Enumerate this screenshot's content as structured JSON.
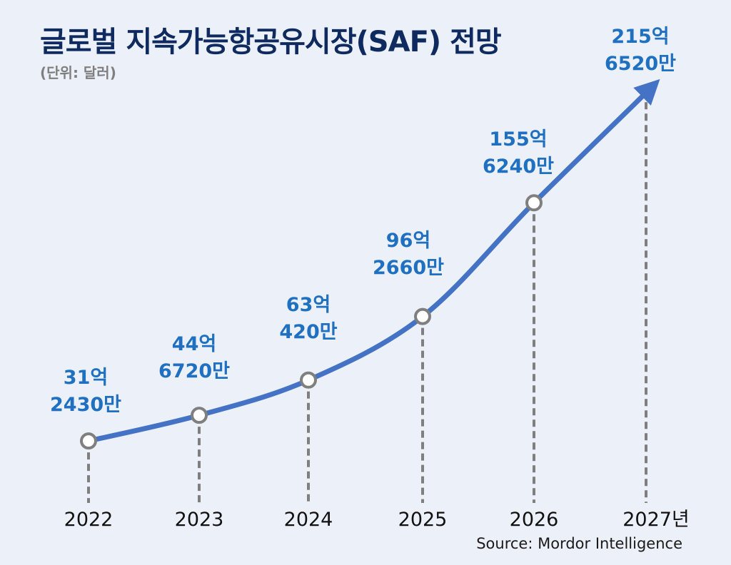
{
  "chart_data": {
    "type": "line",
    "title": "글로벌 지속가능항공유시장(SAF) 전망",
    "subtitle": "(단위: 달러)",
    "source": "Source: Mordor Intelligence",
    "x": [
      "2022",
      "2023",
      "2024",
      "2025",
      "2026",
      "2027년"
    ],
    "values_billion_usd": [
      3.1243,
      4.4672,
      6.3042,
      9.6266,
      15.5624,
      21.5652
    ],
    "data_labels": [
      [
        "31억",
        "2430만"
      ],
      [
        "44억",
        "6720만"
      ],
      [
        "63억",
        "420만"
      ],
      [
        "96억",
        "2660만"
      ],
      [
        "155억",
        "6240만"
      ],
      [
        "215억",
        "6520만"
      ]
    ],
    "grid": false,
    "legend": "none",
    "last_point_marker": "arrow",
    "colors": {
      "line": "#4472c4",
      "marker_stroke": "#7f7f7f",
      "label": "#1f70c1",
      "title": "#0f2a5e",
      "background": "#ecf0f8"
    }
  }
}
